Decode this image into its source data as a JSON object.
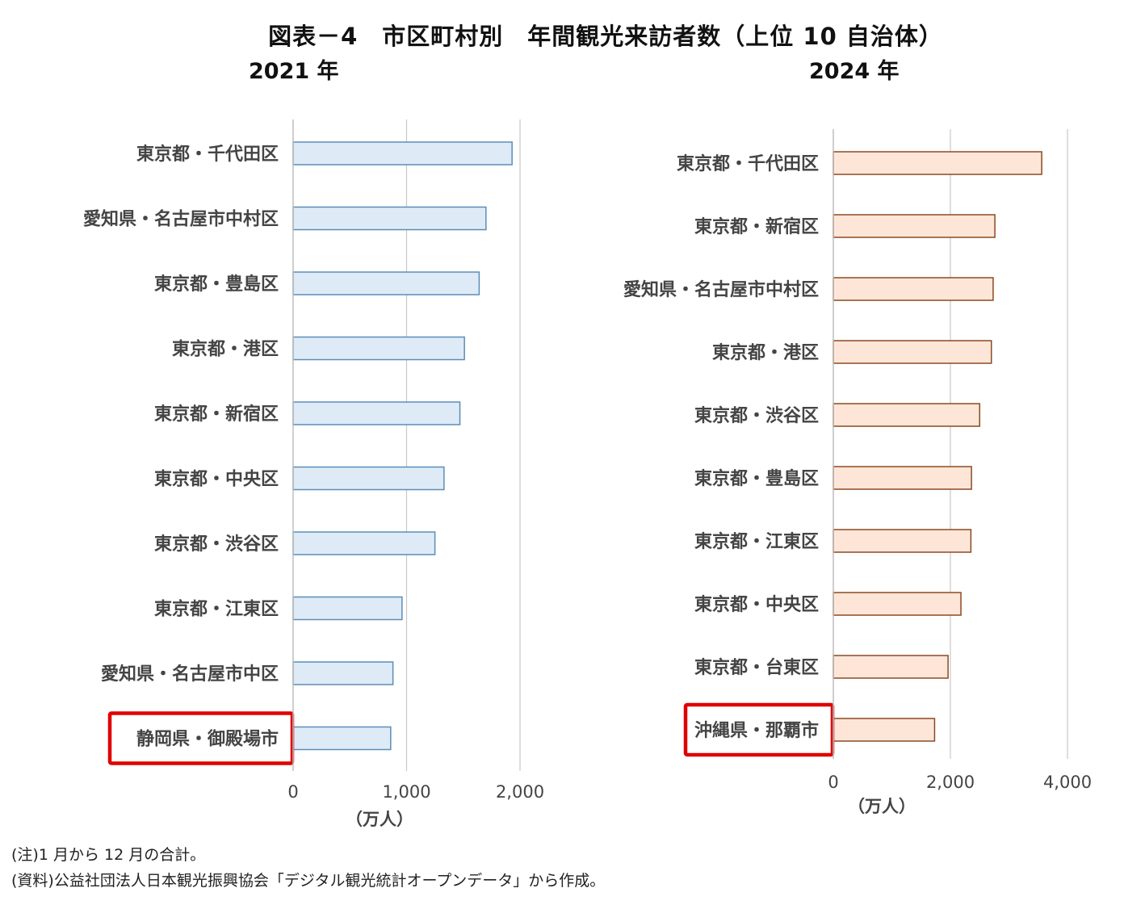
{
  "title": "図表－4　市区町村別　年間観光来訪者数（上位 10 自治体）",
  "notes": {
    "note": "(注)1 月から 12 月の合計。",
    "source": "(資料)公益社団法人日本観光振興協会「デジタル観光統計オープンデータ」から作成。"
  },
  "chart_data": [
    {
      "type": "bar",
      "orientation": "horizontal",
      "subtitle": "2021 年",
      "categories": [
        "東京都・千代田区",
        "愛知県・名古屋市中村区",
        "東京都・豊島区",
        "東京都・港区",
        "東京都・新宿区",
        "東京都・中央区",
        "東京都・渋谷区",
        "東京都・江東区",
        "愛知県・名古屋市中区",
        "静岡県・御殿場市"
      ],
      "values": [
        1930,
        1700,
        1640,
        1510,
        1470,
        1330,
        1250,
        960,
        880,
        860
      ],
      "xlim": [
        0,
        2000
      ],
      "ticks": [
        0,
        1000,
        2000
      ],
      "tick_labels": [
        "0",
        "1,000",
        "2,000"
      ],
      "unit_label": "（万人）",
      "highlight": "静岡県・御殿場市",
      "bar_fill": "#deebf7",
      "bar_stroke": "#5b8db8",
      "highlight_color": "#e00000",
      "grid": true
    },
    {
      "type": "bar",
      "orientation": "horizontal",
      "subtitle": "2024 年",
      "categories": [
        "東京都・千代田区",
        "東京都・新宿区",
        "愛知県・名古屋市中村区",
        "東京都・港区",
        "東京都・渋谷区",
        "東京都・豊島区",
        "東京都・江東区",
        "東京都・中央区",
        "東京都・台東区",
        "沖縄県・那覇市"
      ],
      "values": [
        3560,
        2760,
        2730,
        2700,
        2500,
        2360,
        2350,
        2180,
        1960,
        1730
      ],
      "xlim": [
        0,
        4000
      ],
      "ticks": [
        0,
        2000,
        4000
      ],
      "tick_labels": [
        "0",
        "2,000",
        "4,000"
      ],
      "unit_label": "（万人）",
      "highlight": "沖縄県・那覇市",
      "bar_fill": "#fde6d8",
      "bar_stroke": "#8b4a22",
      "highlight_color": "#e00000",
      "grid": true
    }
  ]
}
